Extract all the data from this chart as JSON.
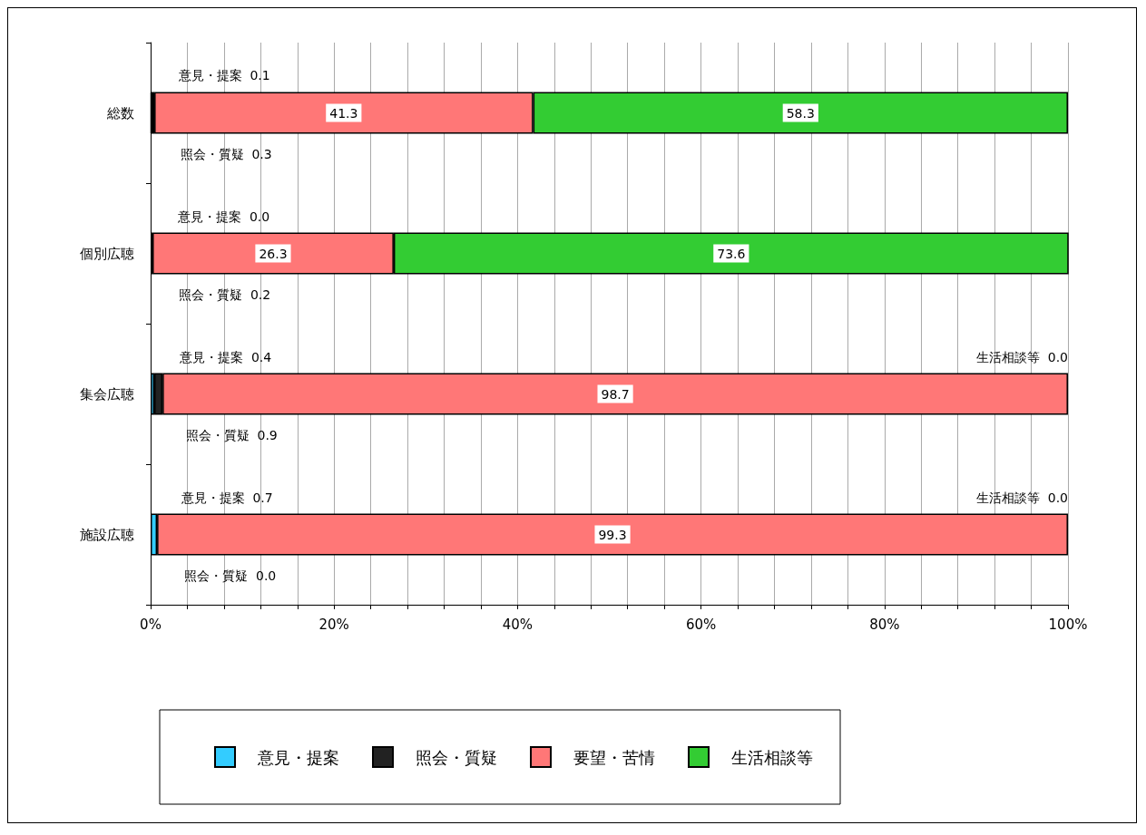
{
  "chart_data": {
    "type": "bar",
    "orientation": "horizontal",
    "stacked": true,
    "categories": [
      "総数",
      "個別広聴",
      "集会広聴",
      "施設広聴"
    ],
    "series": [
      {
        "name": "意見・提案",
        "color": "#33ccff",
        "values": [
          0.1,
          0.0,
          0.4,
          0.7
        ],
        "value_labels": [
          "0.1",
          "0.0",
          "0.4",
          "0.7"
        ]
      },
      {
        "name": "照会・質疑",
        "color": "#222222",
        "values": [
          0.3,
          0.2,
          0.9,
          0.0
        ],
        "value_labels": [
          "0.3",
          "0.2",
          "0.9",
          "0.0"
        ]
      },
      {
        "name": "要望・苦情",
        "color": "#ff7777",
        "values": [
          41.3,
          26.3,
          98.7,
          99.3
        ],
        "value_labels": [
          "41.3",
          "26.3",
          "98.7",
          "99.3"
        ]
      },
      {
        "name": "生活相談等",
        "color": "#33cc33",
        "values": [
          58.3,
          73.6,
          0.0,
          0.0
        ],
        "value_labels": [
          "58.3",
          "73.6",
          "0.0",
          "0.0"
        ]
      }
    ],
    "xlim": [
      0,
      100
    ],
    "xticks": [
      {
        "value": 0,
        "label": "0%"
      },
      {
        "value": 4,
        "label": null
      },
      {
        "value": 8,
        "label": null
      },
      {
        "value": 12,
        "label": null
      },
      {
        "value": 16,
        "label": null
      },
      {
        "value": 20,
        "label": "20%"
      },
      {
        "value": 24,
        "label": null
      },
      {
        "value": 28,
        "label": null
      },
      {
        "value": 32,
        "label": null
      },
      {
        "value": 36,
        "label": null
      },
      {
        "value": 40,
        "label": "40%"
      },
      {
        "value": 44,
        "label": null
      },
      {
        "value": 48,
        "label": null
      },
      {
        "value": 52,
        "label": null
      },
      {
        "value": 56,
        "label": null
      },
      {
        "value": 60,
        "label": "60%"
      },
      {
        "value": 64,
        "label": null
      },
      {
        "value": 68,
        "label": null
      },
      {
        "value": 72,
        "label": null
      },
      {
        "value": 76,
        "label": null
      },
      {
        "value": 80,
        "label": "80%"
      },
      {
        "value": 84,
        "label": null
      },
      {
        "value": 88,
        "label": null
      },
      {
        "value": 92,
        "label": null
      },
      {
        "value": 96,
        "label": null
      },
      {
        "value": 100,
        "label": "100%"
      }
    ],
    "grid": "x",
    "legend": "bottom"
  }
}
